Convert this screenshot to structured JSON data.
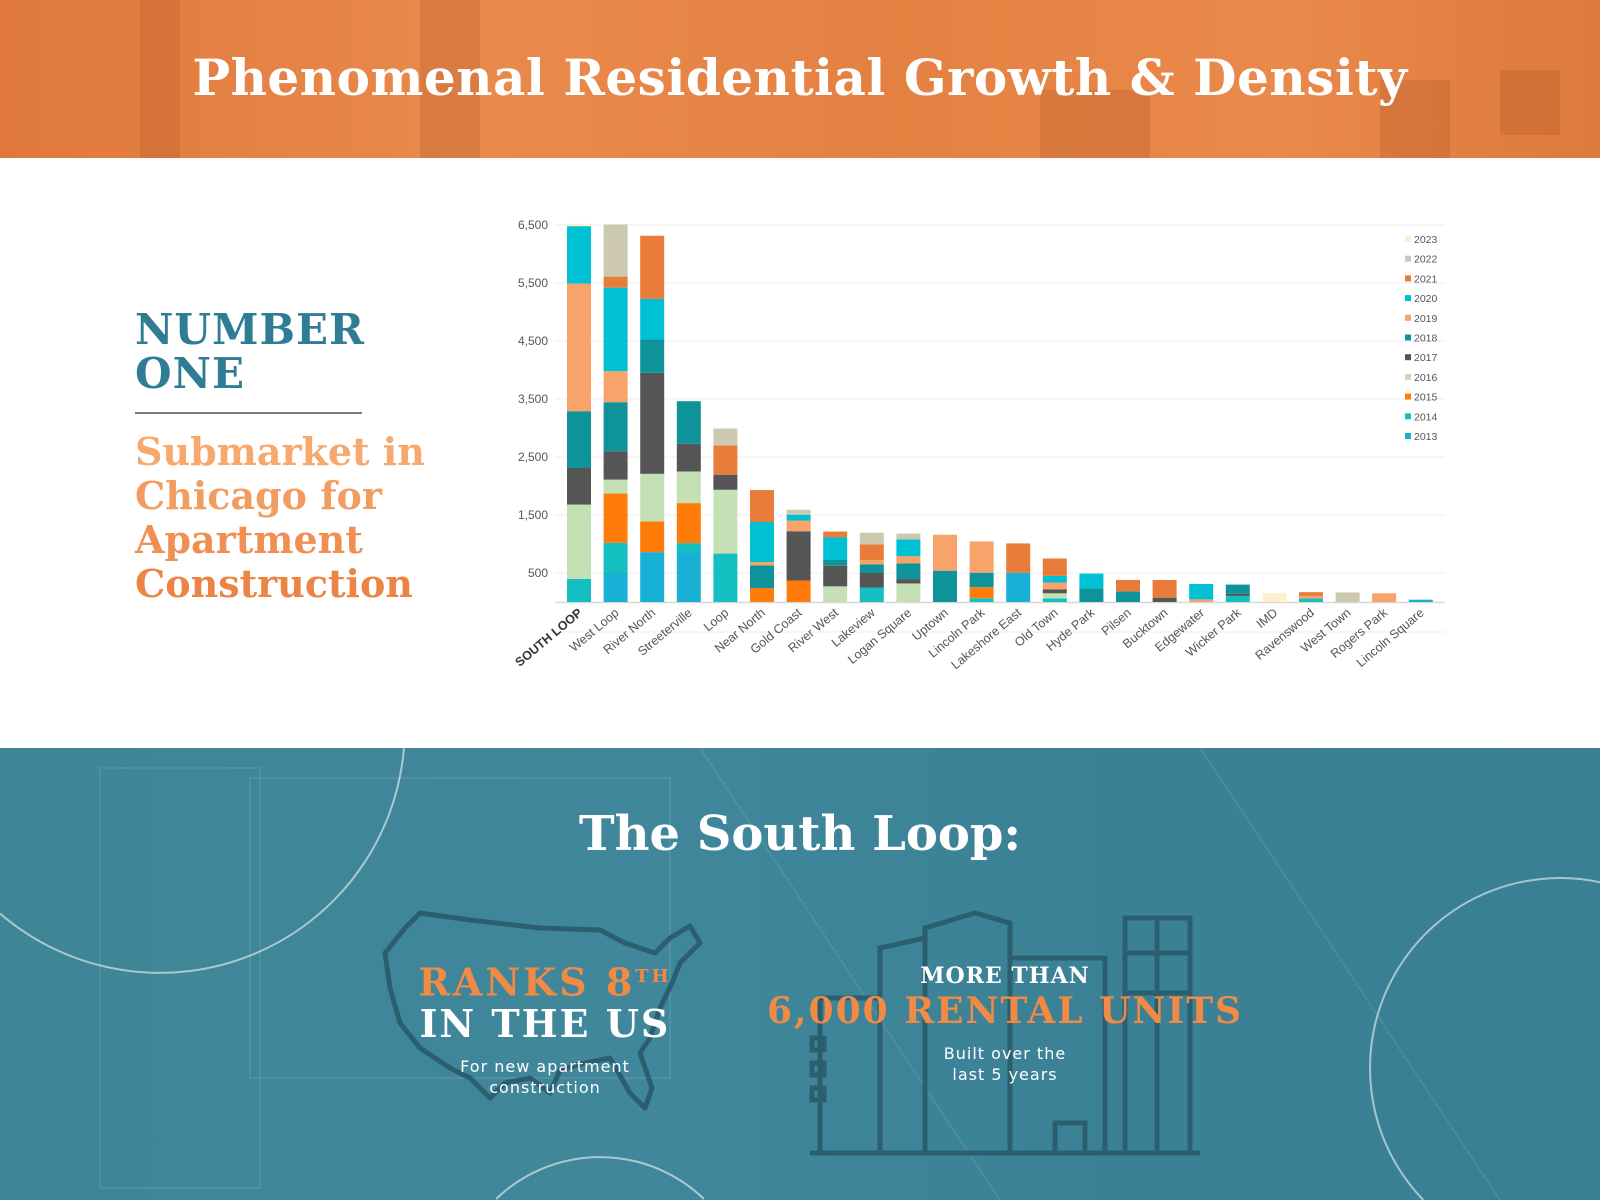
{
  "header": {
    "title": "Phenomenal Residential Growth & Density"
  },
  "left": {
    "headline_line1": "NUMBER",
    "headline_line2": "ONE",
    "sub_lines": [
      "Submarket in",
      "Chicago for",
      "Apartment",
      "Construction"
    ]
  },
  "bottom": {
    "title": "The South Loop:",
    "rank": {
      "line1": "RANKS 8",
      "superscript": "TH",
      "line2": "IN THE US",
      "desc1": "For new apartment",
      "desc2": "construction"
    },
    "units": {
      "line1": "MORE THAN",
      "line2": "6,000 RENTAL UNITS",
      "desc1": "Built over the",
      "desc2": "last 5 years"
    }
  },
  "colors": {
    "orange": "#f08a44",
    "teal": "#2f7d95",
    "bottom_bg": "#3e8597"
  },
  "chart_data": {
    "type": "bar",
    "stacked": true,
    "title": "",
    "xlabel": "",
    "ylabel": "",
    "ylim": [
      0,
      6500
    ],
    "yticks": [
      "500",
      "1,500",
      "2,500",
      "3,500",
      "4,500",
      "5,500",
      "6,500"
    ],
    "ytick_values": [
      500,
      1500,
      2500,
      3500,
      4500,
      5500,
      6500
    ],
    "grid": true,
    "legend_position": "right",
    "categories": [
      "SOUTH LOOP",
      "West Loop",
      "River North",
      "Streeterville",
      "Loop",
      "Near North",
      "Gold Coast",
      "River West",
      "Lakeview",
      "Logan Square",
      "Uptown",
      "Lincoln Park",
      "Lakeshore East",
      "Old Town",
      "Hyde Park",
      "Pilsen",
      "Bucktown",
      "Edgewater",
      "Wicker Park",
      "IMD",
      "Ravenswood",
      "West Town",
      "Rogers Park",
      "Lincoln Square"
    ],
    "series": [
      {
        "name": "2013",
        "color": "#19b0d6",
        "values": [
          0,
          500,
          860,
          845,
          0,
          0,
          0,
          0,
          0,
          0,
          0,
          0,
          505,
          0,
          0,
          0,
          0,
          0,
          0,
          0,
          0,
          0,
          0,
          40
        ]
      },
      {
        "name": "2014",
        "color": "#14bfc2",
        "values": [
          400,
          520,
          0,
          170,
          835,
          0,
          0,
          0,
          250,
          0,
          0,
          65,
          0,
          60,
          0,
          0,
          0,
          0,
          105,
          0,
          60,
          0,
          0,
          0
        ]
      },
      {
        "name": "2015",
        "color": "#ff7b0a",
        "values": [
          0,
          850,
          530,
          690,
          0,
          240,
          370,
          0,
          0,
          0,
          0,
          190,
          0,
          0,
          0,
          0,
          0,
          0,
          0,
          0,
          0,
          0,
          0,
          0
        ]
      },
      {
        "name": "2016",
        "color": "#c6e0b6",
        "values": [
          1280,
          240,
          820,
          545,
          1100,
          0,
          0,
          270,
          0,
          320,
          0,
          0,
          0,
          90,
          0,
          0,
          0,
          0,
          0,
          0,
          0,
          0,
          0,
          0
        ]
      },
      {
        "name": "2017",
        "color": "#555555",
        "values": [
          630,
          490,
          1740,
          477,
          260,
          0,
          850,
          355,
          250,
          75,
          0,
          0,
          0,
          70,
          0,
          0,
          75,
          0,
          35,
          0,
          0,
          0,
          0,
          0
        ]
      },
      {
        "name": "2018",
        "color": "#0f939a",
        "values": [
          980,
          845,
          575,
          735,
          0,
          390,
          0,
          100,
          150,
          270,
          540,
          250,
          0,
          0,
          235,
          180,
          0,
          0,
          160,
          0,
          0,
          0,
          0,
          0
        ]
      },
      {
        "name": "2019",
        "color": "#f8a36a",
        "values": [
          2200,
          535,
          0,
          0,
          0,
          60,
          185,
          0,
          70,
          125,
          620,
          540,
          0,
          115,
          0,
          0,
          0,
          45,
          0,
          0,
          45,
          0,
          150,
          0
        ]
      },
      {
        "name": "2020",
        "color": "#00c0d3",
        "values": [
          990,
          1440,
          700,
          0,
          0,
          690,
          100,
          390,
          0,
          290,
          0,
          0,
          0,
          115,
          255,
          0,
          0,
          265,
          0,
          0,
          0,
          0,
          0,
          0
        ]
      },
      {
        "name": "2021",
        "color": "#e97c38",
        "values": [
          0,
          190,
          1090,
          0,
          505,
          550,
          0,
          100,
          275,
          0,
          0,
          0,
          505,
          300,
          0,
          200,
          305,
          0,
          0,
          0,
          65,
          0,
          0,
          0
        ]
      },
      {
        "name": "2022",
        "color": "#cdc9b1",
        "values": [
          0,
          900,
          0,
          0,
          290,
          0,
          85,
          0,
          200,
          100,
          0,
          0,
          0,
          0,
          0,
          0,
          0,
          0,
          0,
          0,
          0,
          165,
          0,
          0
        ]
      },
      {
        "name": "2023",
        "color": "#fdf0cc",
        "values": [
          40,
          0,
          0,
          0,
          0,
          0,
          0,
          0,
          0,
          0,
          0,
          0,
          0,
          0,
          0,
          0,
          0,
          0,
          0,
          150,
          0,
          0,
          0,
          0
        ]
      }
    ]
  }
}
